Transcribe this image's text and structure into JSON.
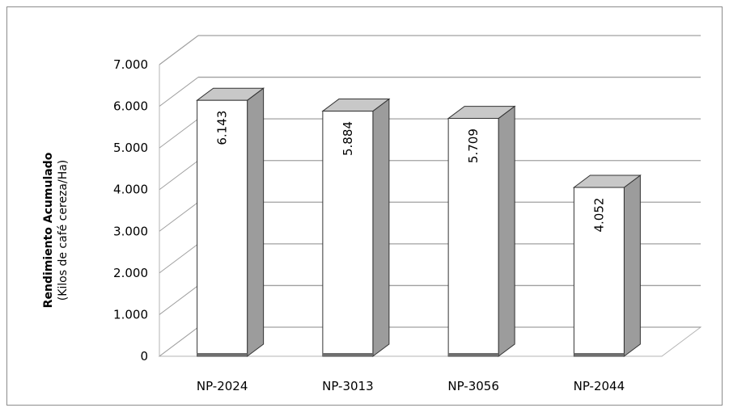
{
  "chart_data": {
    "type": "bar",
    "style": "3d-column",
    "categories": [
      "NP-2024",
      "NP-3013",
      "NP-3056",
      "NP-2044"
    ],
    "values": [
      6143,
      5884,
      5709,
      4052
    ],
    "data_labels": [
      "6.143",
      "5.884",
      "5.709",
      "4.052"
    ],
    "ylabel_main": "Rendimiento Acumulado",
    "ylabel_sub": "(Kilos de café cereza/Ha)",
    "ylim": [
      0,
      7000
    ],
    "yticks": [
      0,
      1000,
      2000,
      3000,
      4000,
      5000,
      6000,
      7000
    ],
    "ytick_labels": [
      "0",
      "1.000",
      "2.000",
      "3.000",
      "4.000",
      "5.000",
      "6.000",
      "7.000"
    ],
    "grid": true,
    "legend": "none",
    "colors": {
      "bar_front": "#ffffff",
      "bar_side": "#9c9c9c",
      "bar_top": "#c8c8c8",
      "bar_base": "#6e6e6e",
      "gridline": "#a0a0a0",
      "wall_edge": "#b5b5b5"
    }
  }
}
